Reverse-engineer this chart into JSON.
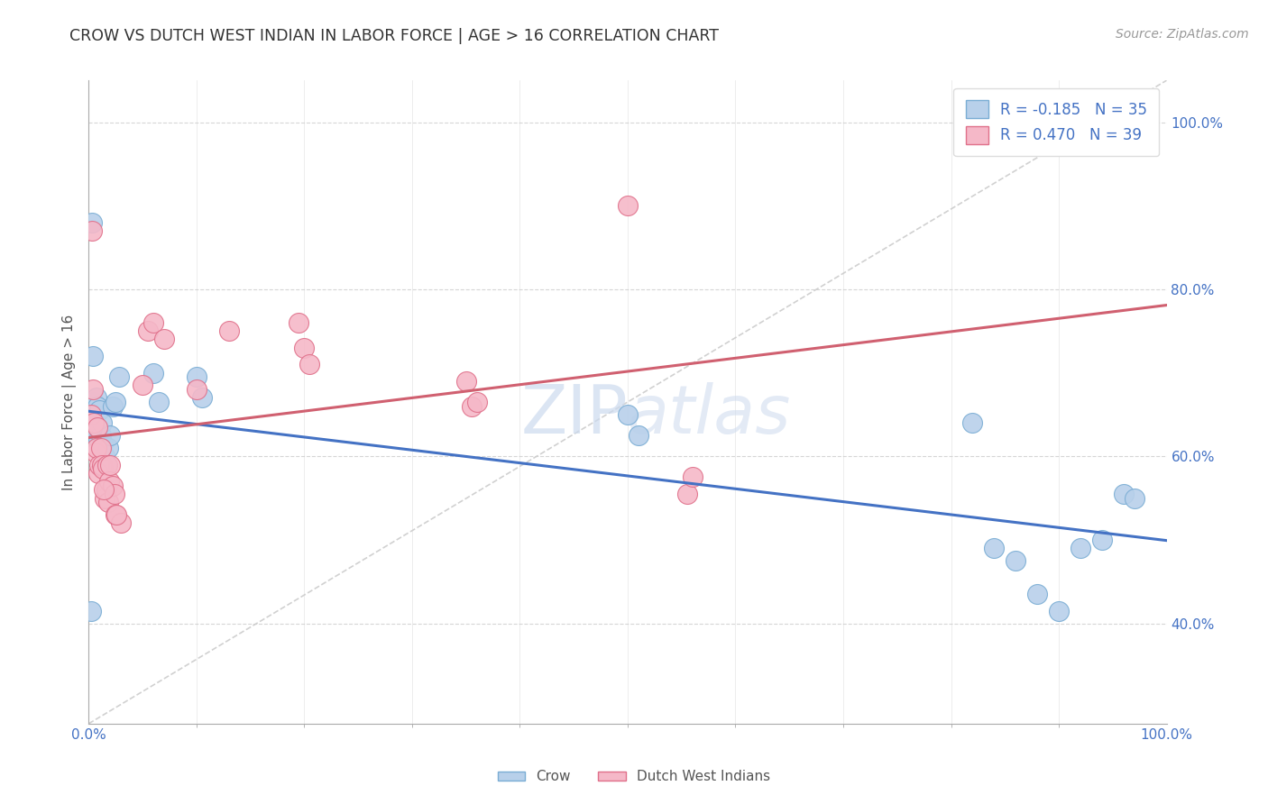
{
  "title": "CROW VS DUTCH WEST INDIAN IN LABOR FORCE | AGE > 16 CORRELATION CHART",
  "source": "Source: ZipAtlas.com",
  "ylabel": "In Labor Force | Age > 16",
  "crow_R": -0.185,
  "crow_N": 35,
  "dutch_R": 0.47,
  "dutch_N": 39,
  "crow_color": "#b8d0ea",
  "crow_edge_color": "#7aadd4",
  "dutch_color": "#f5b8c8",
  "dutch_edge_color": "#e0708a",
  "crow_line_color": "#4472c4",
  "dutch_line_color": "#d06070",
  "watermark_color": "#ccdaee",
  "background_color": "#ffffff",
  "grid_color": "#cccccc",
  "crow_x": [
    0.002,
    0.004,
    0.005,
    0.006,
    0.007,
    0.008,
    0.009,
    0.01,
    0.011,
    0.012,
    0.013,
    0.014,
    0.015,
    0.016,
    0.018,
    0.02,
    0.022,
    0.025,
    0.028,
    0.06,
    0.065,
    0.1,
    0.105,
    0.5,
    0.51,
    0.82,
    0.84,
    0.86,
    0.88,
    0.9,
    0.92,
    0.94,
    0.96,
    0.97,
    0.003
  ],
  "crow_y": [
    0.415,
    0.72,
    0.665,
    0.63,
    0.67,
    0.66,
    0.62,
    0.655,
    0.625,
    0.64,
    0.615,
    0.595,
    0.6,
    0.59,
    0.61,
    0.625,
    0.66,
    0.665,
    0.695,
    0.7,
    0.665,
    0.695,
    0.67,
    0.65,
    0.625,
    0.64,
    0.49,
    0.475,
    0.435,
    0.415,
    0.49,
    0.5,
    0.555,
    0.55,
    0.88
  ],
  "dutch_x": [
    0.002,
    0.004,
    0.005,
    0.006,
    0.007,
    0.008,
    0.009,
    0.01,
    0.011,
    0.012,
    0.013,
    0.015,
    0.016,
    0.017,
    0.018,
    0.019,
    0.02,
    0.022,
    0.024,
    0.025,
    0.03,
    0.05,
    0.055,
    0.06,
    0.07,
    0.1,
    0.13,
    0.195,
    0.2,
    0.205,
    0.35,
    0.355,
    0.36,
    0.555,
    0.56,
    0.003,
    0.014,
    0.026,
    0.5
  ],
  "dutch_y": [
    0.65,
    0.68,
    0.64,
    0.605,
    0.61,
    0.635,
    0.58,
    0.59,
    0.61,
    0.59,
    0.585,
    0.55,
    0.56,
    0.59,
    0.545,
    0.57,
    0.59,
    0.565,
    0.555,
    0.53,
    0.52,
    0.685,
    0.75,
    0.76,
    0.74,
    0.68,
    0.75,
    0.76,
    0.73,
    0.71,
    0.69,
    0.66,
    0.665,
    0.555,
    0.575,
    0.87,
    0.56,
    0.53,
    0.9
  ],
  "xlim": [
    0.0,
    1.0
  ],
  "ylim": [
    0.28,
    1.05
  ],
  "yticks": [
    0.4,
    0.6,
    0.8,
    1.0
  ],
  "yticklabels": [
    "40.0%",
    "60.0%",
    "80.0%",
    "100.0%"
  ]
}
